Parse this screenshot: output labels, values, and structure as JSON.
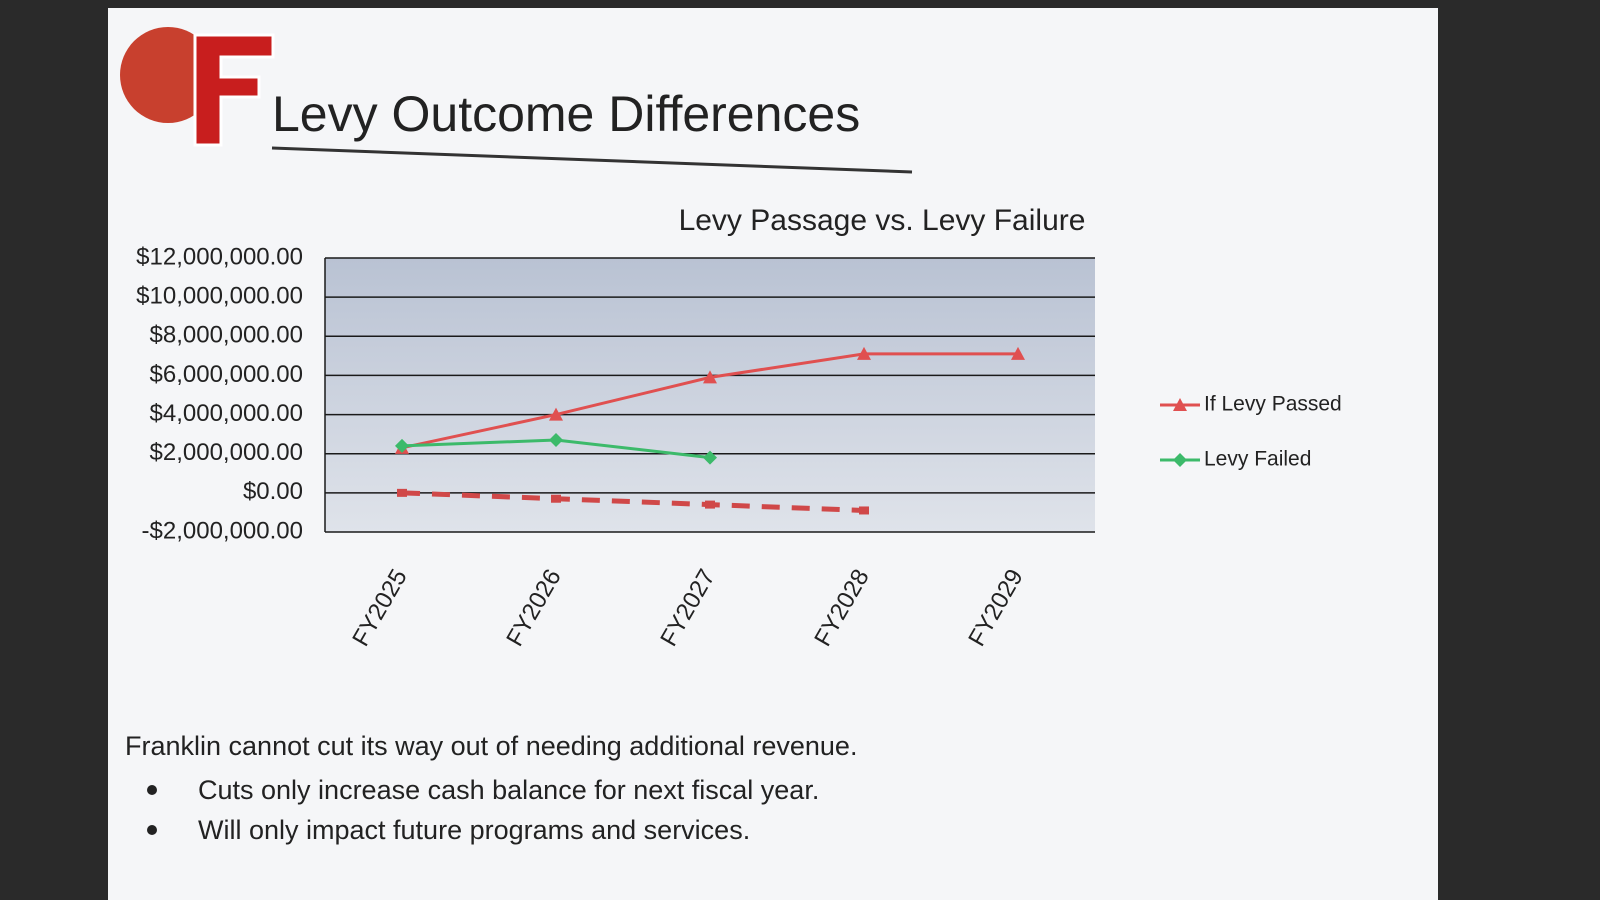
{
  "slide": {
    "title": "Levy Outcome Differences",
    "body": "Franklin cannot cut its way out of needing additional revenue.",
    "bullets": [
      "Cuts only increase cash balance for next fiscal year.",
      "Will only impact future programs and services."
    ]
  },
  "chart_data": {
    "type": "line",
    "title": "Levy Passage vs. Levy Failure",
    "categories": [
      "FY2025",
      "FY2026",
      "FY2027",
      "FY2028",
      "FY2029"
    ],
    "series": [
      {
        "name": "If Levy Passed",
        "color": "#e05050",
        "marker": "triangle",
        "values": [
          2300000,
          4000000,
          5900000,
          7100000,
          7100000
        ]
      },
      {
        "name": "Levy Failed",
        "color": "#3cba6a",
        "marker": "diamond",
        "values": [
          2400000,
          2700000,
          1800000,
          null,
          null
        ]
      },
      {
        "color": "#d04848",
        "marker": "square",
        "dashed": true,
        "values": [
          0,
          -300000,
          -600000,
          -900000,
          null
        ]
      }
    ],
    "ylim": [
      -2000000,
      12000000
    ],
    "yticks": [
      {
        "value": -2000000,
        "label": "-$2,000,000.00"
      },
      {
        "value": 0,
        "label": "$0.00"
      },
      {
        "value": 2000000,
        "label": "$2,000,000.00"
      },
      {
        "value": 4000000,
        "label": "$4,000,000.00"
      },
      {
        "value": 6000000,
        "label": "$6,000,000.00"
      },
      {
        "value": 8000000,
        "label": "$8,000,000.00"
      },
      {
        "value": 10000000,
        "label": "$10,000,000.00"
      },
      {
        "value": 12000000,
        "label": "$12,000,000.00"
      }
    ],
    "grid": true,
    "legend": "right"
  }
}
